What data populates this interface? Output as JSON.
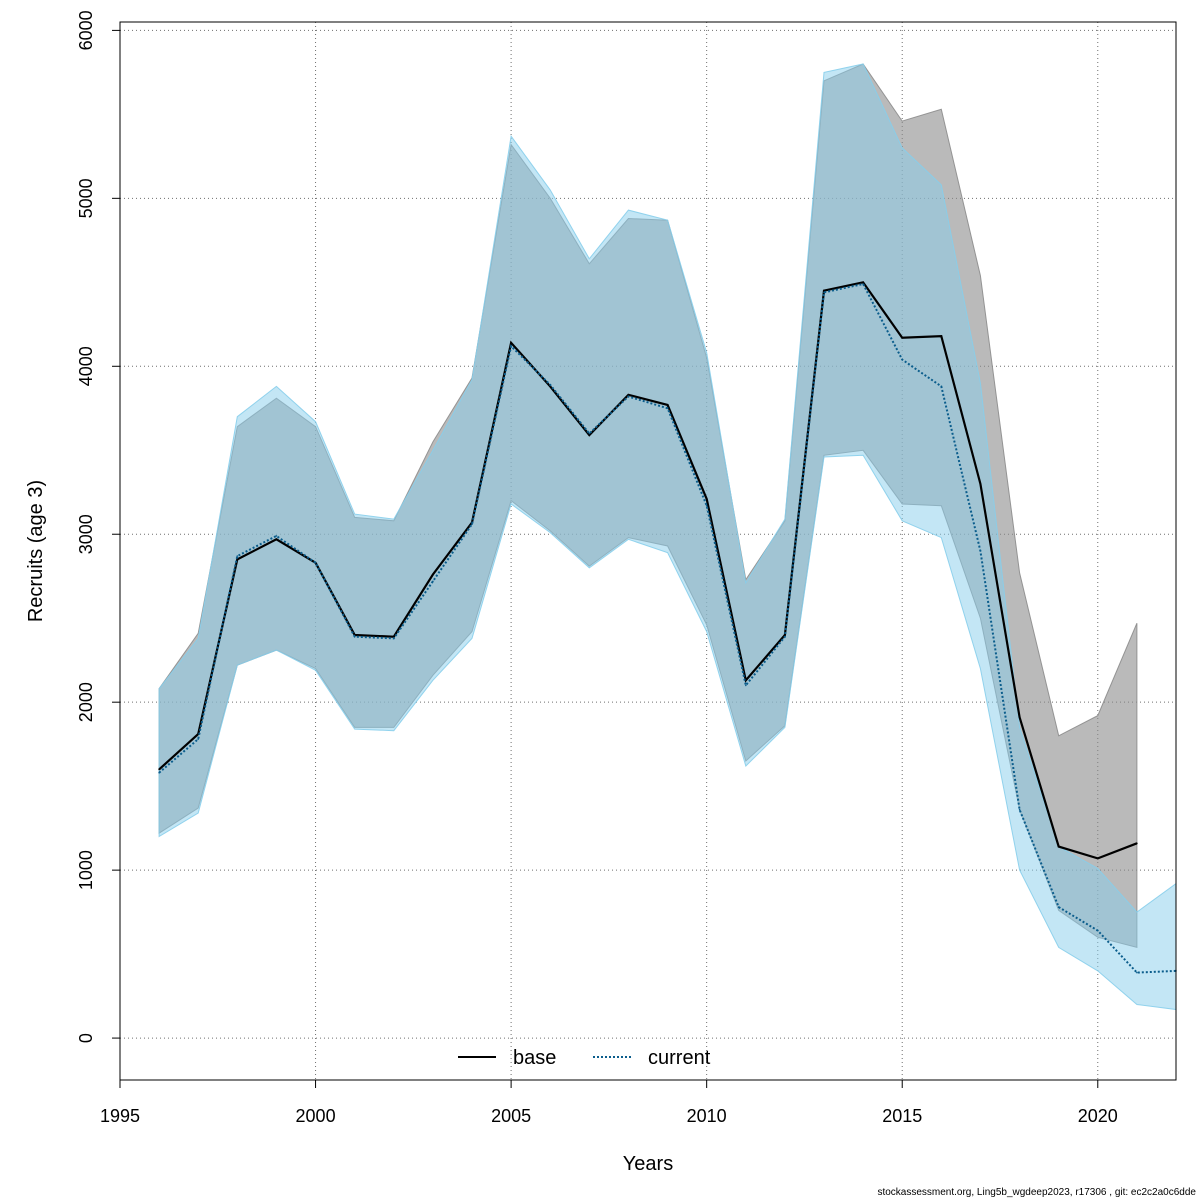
{
  "chart_data": {
    "type": "line",
    "title": "",
    "xlabel": "Years",
    "ylabel": "Recruits (age 3)",
    "xlim": [
      1995,
      2022
    ],
    "ylim": [
      0,
      6000
    ],
    "x_ticks": [
      1995,
      2000,
      2005,
      2010,
      2015,
      2020
    ],
    "y_ticks": [
      0,
      1000,
      2000,
      3000,
      4000,
      5000,
      6000
    ],
    "grid": true,
    "legend_position": "bottom-center",
    "series": [
      {
        "name": "base",
        "line_style": "solid",
        "line_color": "#000000",
        "band_color": "#8c8c8c",
        "x": [
          1996,
          1997,
          1998,
          1999,
          2000,
          2001,
          2002,
          2003,
          2004,
          2005,
          2006,
          2007,
          2008,
          2009,
          2010,
          2011,
          2012,
          2013,
          2014,
          2015,
          2016,
          2017,
          2018,
          2019,
          2020,
          2021
        ],
        "values": [
          1600,
          1810,
          2850,
          2970,
          2830,
          2400,
          2390,
          2760,
          3070,
          4140,
          3880,
          3590,
          3830,
          3770,
          3210,
          2130,
          2400,
          4450,
          4500,
          4170,
          4180,
          3300,
          1910,
          1140,
          1070,
          1160
        ],
        "lower": [
          1220,
          1370,
          2220,
          2310,
          2200,
          1850,
          1850,
          2160,
          2420,
          3200,
          3020,
          2810,
          2980,
          2930,
          2460,
          1650,
          1860,
          3470,
          3500,
          3180,
          3170,
          2500,
          1360,
          760,
          600,
          540
        ],
        "upper": [
          2080,
          2410,
          3640,
          3810,
          3640,
          3100,
          3080,
          3550,
          3930,
          5320,
          5000,
          4610,
          4880,
          4870,
          4050,
          2730,
          3080,
          5700,
          5800,
          5460,
          5530,
          4540,
          2770,
          1800,
          1920,
          2470
        ]
      },
      {
        "name": "current",
        "line_style": "dotted",
        "line_color": "#0b5d8c",
        "band_color": "#87ceeb",
        "x": [
          1996,
          1997,
          1998,
          1999,
          2000,
          2001,
          2002,
          2003,
          2004,
          2005,
          2006,
          2007,
          2008,
          2009,
          2010,
          2011,
          2012,
          2013,
          2014,
          2015,
          2016,
          2017,
          2018,
          2019,
          2020,
          2021,
          2022
        ],
        "values": [
          1580,
          1780,
          2870,
          2990,
          2830,
          2390,
          2380,
          2720,
          3060,
          4120,
          3890,
          3600,
          3820,
          3750,
          3170,
          2100,
          2390,
          4440,
          4490,
          4040,
          3880,
          2900,
          1360,
          780,
          640,
          390,
          400
        ],
        "lower": [
          1200,
          1340,
          2220,
          2310,
          2190,
          1840,
          1830,
          2130,
          2380,
          3180,
          3010,
          2800,
          2970,
          2890,
          2420,
          1620,
          1850,
          3460,
          3470,
          3080,
          2980,
          2200,
          1000,
          540,
          400,
          200,
          170
        ],
        "upper": [
          2080,
          2380,
          3700,
          3880,
          3670,
          3120,
          3090,
          3500,
          3920,
          5370,
          5050,
          4640,
          4930,
          4870,
          4080,
          2710,
          3090,
          5750,
          5800,
          5300,
          5080,
          3900,
          1850,
          1140,
          1010,
          750,
          920
        ]
      }
    ]
  },
  "footer_note": "stockassessment.org, Ling5b_wgdeep2023, r17306 , git: ec2c2a0c6dde"
}
